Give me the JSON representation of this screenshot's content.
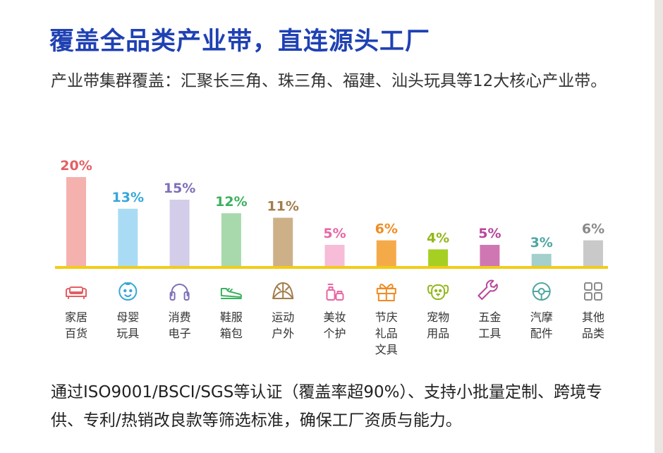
{
  "page": {
    "title": "覆盖全品类产业带，直连源头工厂",
    "subtitle": "产业带集群覆盖：汇聚长三角、珠三角、福建、汕头玩具等12大核心产业带。",
    "footer": "通过ISO9001/BSCI/SGS等认证（覆盖率超90%）、支持小批量定制、跨境专供、专利/热销改良款等筛选标准，确保工厂资质与能力。"
  },
  "chart_data": {
    "type": "bar",
    "title": "",
    "xlabel": "",
    "ylabel": "",
    "ylim": [
      0,
      20
    ],
    "grid": false,
    "legend": "none",
    "baseline_color": "#f2cc16",
    "categories": [
      "家居\n百货",
      "母婴\n玩具",
      "消费\n电子",
      "鞋服\n箱包",
      "运动\n户外",
      "美妆\n个护",
      "节庆\n礼品\n文具",
      "宠物\n用品",
      "五金\n工具",
      "汽摩\n配件",
      "其他\n品类"
    ],
    "values": [
      20,
      13,
      15,
      12,
      11,
      5,
      6,
      4,
      5,
      3,
      6
    ],
    "value_labels": [
      "20%",
      "13%",
      "15%",
      "12%",
      "11%",
      "5%",
      "6%",
      "4%",
      "5%",
      "3%",
      "6%"
    ],
    "bar_colors": [
      "#f4b1ae",
      "#a9dcf4",
      "#d3cde9",
      "#a8d9ad",
      "#cdb088",
      "#f7bcd8",
      "#f5aa4a",
      "#a6cf24",
      "#cf77b2",
      "#a3cfcc",
      "#c9c9c9"
    ],
    "label_colors": [
      "#e35f63",
      "#35a7da",
      "#7f6fb8",
      "#3cb160",
      "#a27d4b",
      "#e766a4",
      "#ef8c23",
      "#92b71a",
      "#b9469a",
      "#4fa6a2",
      "#8a8a8a"
    ],
    "icons": [
      "sofa-icon",
      "baby-face-icon",
      "headphones-icon",
      "sneaker-icon",
      "tent-icon",
      "cosmetics-icon",
      "gift-box-icon",
      "dog-face-icon",
      "wrench-icon",
      "steering-wheel-icon",
      "grid-squares-icon"
    ]
  }
}
